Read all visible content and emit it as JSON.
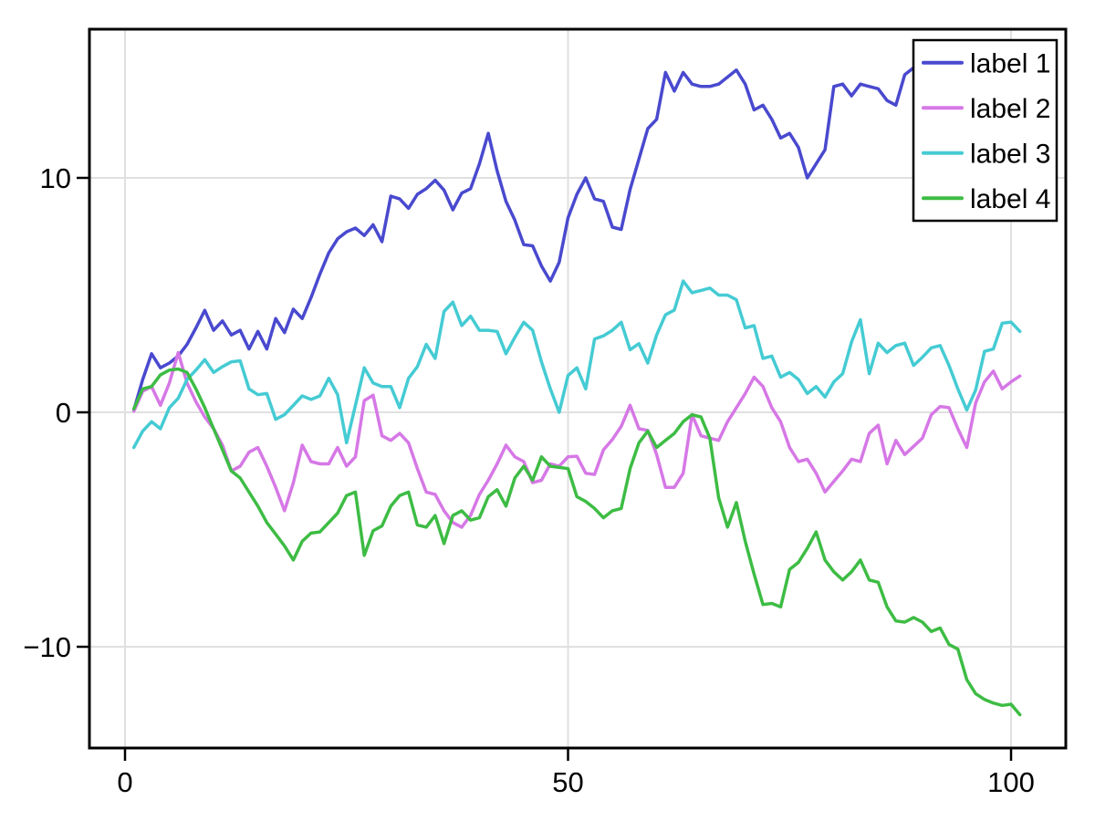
{
  "figure": {
    "background": "#ffffff",
    "text_color": "#000000",
    "grid_color": "#e0e0e0",
    "spine_color": "#000000"
  },
  "axes": {
    "x_tick_labels": [
      "0",
      "50",
      "100"
    ],
    "x_tick_values": [
      0,
      50,
      100
    ],
    "y_tick_labels": [
      "10",
      "0",
      "−10"
    ],
    "y_tick_values": [
      10,
      0,
      -10
    ]
  },
  "legend": {
    "position": "top-right",
    "entries": [
      {
        "label": "label 1",
        "color": "#4949cf"
      },
      {
        "label": "label 2",
        "color": "#d678e6"
      },
      {
        "label": "label 3",
        "color": "#45cbd3"
      },
      {
        "label": "label 4",
        "color": "#3dbc44"
      }
    ]
  },
  "chart_data": {
    "type": "line",
    "title": "",
    "xlabel": "",
    "ylabel": "",
    "grid": true,
    "legend_position": "top-right",
    "x_start": 1,
    "x_step": 1,
    "x_range": [
      1,
      101
    ],
    "xlim": [
      -4.0,
      106.2
    ],
    "ylim": [
      -14.3,
      16.3
    ],
    "series": [
      {
        "name": "label 1",
        "color": "#4949cf",
        "values": [
          0.1,
          1.4,
          2.5,
          1.9,
          2.1,
          2.4,
          2.9,
          3.6,
          4.35,
          3.5,
          3.9,
          3.3,
          3.5,
          2.7,
          3.45,
          2.7,
          4.0,
          3.4,
          4.4,
          4.0,
          4.9,
          5.9,
          6.8,
          7.4,
          7.7,
          7.86,
          7.54,
          8.0,
          7.28,
          9.22,
          9.1,
          8.7,
          9.3,
          9.54,
          9.9,
          9.48,
          8.64,
          9.35,
          9.54,
          10.6,
          11.9,
          10.3,
          9.0,
          8.2,
          7.15,
          7.1,
          6.24,
          5.6,
          6.4,
          8.3,
          9.3,
          10.0,
          9.1,
          9.0,
          7.9,
          7.8,
          9.5,
          10.8,
          12.1,
          12.5,
          14.5,
          13.7,
          14.5,
          14.0,
          13.9,
          13.9,
          14.0,
          14.3,
          14.6,
          14.0,
          12.9,
          13.1,
          12.5,
          11.7,
          11.9,
          11.3,
          10.0,
          10.6,
          11.2,
          13.9,
          14.0,
          13.5,
          14.0,
          13.9,
          13.8,
          13.3,
          13.1,
          14.4,
          14.7,
          14.8,
          14.7,
          14.9,
          15.1,
          15.0,
          15.2,
          15.1,
          15.3,
          15.2,
          15.4,
          15.3,
          15.5
        ]
      },
      {
        "name": "label 2",
        "color": "#d678e6",
        "values": [
          0.05,
          0.9,
          1.1,
          0.3,
          1.25,
          2.55,
          1.25,
          0.45,
          -0.2,
          -0.7,
          -1.4,
          -2.5,
          -2.3,
          -1.7,
          -1.5,
          -2.3,
          -3.2,
          -4.2,
          -3.0,
          -1.4,
          -2.1,
          -2.2,
          -2.2,
          -1.5,
          -2.3,
          -1.9,
          0.5,
          0.73,
          -1.0,
          -1.2,
          -0.9,
          -1.3,
          -2.4,
          -3.4,
          -3.5,
          -4.2,
          -4.7,
          -4.9,
          -4.4,
          -3.5,
          -2.9,
          -2.2,
          -1.4,
          -1.9,
          -2.1,
          -3.0,
          -2.9,
          -2.2,
          -2.3,
          -1.9,
          -1.87,
          -2.6,
          -2.65,
          -1.6,
          -1.16,
          -0.6,
          0.3,
          -0.7,
          -0.77,
          -1.8,
          -3.2,
          -3.2,
          -2.6,
          -0.1,
          -1.0,
          -1.1,
          -1.2,
          -0.4,
          0.2,
          0.8,
          1.5,
          1.1,
          0.2,
          -0.4,
          -1.5,
          -2.1,
          -2.0,
          -2.6,
          -3.4,
          -2.95,
          -2.5,
          -2.0,
          -2.1,
          -0.9,
          -0.55,
          -2.2,
          -1.2,
          -1.8,
          -1.45,
          -1.1,
          -0.1,
          0.25,
          0.2,
          -0.7,
          -1.5,
          0.4,
          1.3,
          1.76,
          1.0,
          1.3,
          1.55
        ]
      },
      {
        "name": "label 3",
        "color": "#45cbd3",
        "values": [
          -1.5,
          -0.8,
          -0.4,
          -0.7,
          0.2,
          0.6,
          1.4,
          1.8,
          2.25,
          1.7,
          1.95,
          2.15,
          2.2,
          1.0,
          0.75,
          0.8,
          -0.3,
          -0.1,
          0.3,
          0.7,
          0.55,
          0.7,
          1.45,
          0.75,
          -1.3,
          0.3,
          1.9,
          1.25,
          1.1,
          1.1,
          0.2,
          1.45,
          1.95,
          2.9,
          2.3,
          4.3,
          4.7,
          3.7,
          4.1,
          3.5,
          3.5,
          3.45,
          2.5,
          3.2,
          3.84,
          3.5,
          2.15,
          1.0,
          0.0,
          1.57,
          1.9,
          1.0,
          3.13,
          3.26,
          3.5,
          3.84,
          2.67,
          2.93,
          2.1,
          3.3,
          4.16,
          4.36,
          5.6,
          5.1,
          5.2,
          5.3,
          5.0,
          5.0,
          4.8,
          3.6,
          3.7,
          2.3,
          2.4,
          1.5,
          1.7,
          1.4,
          0.8,
          1.1,
          0.65,
          1.3,
          1.65,
          3.0,
          3.95,
          1.65,
          2.95,
          2.55,
          2.85,
          2.95,
          2.0,
          2.35,
          2.75,
          2.85,
          2.0,
          1.0,
          0.1,
          0.95,
          2.6,
          2.7,
          3.8,
          3.85,
          3.45
        ]
      },
      {
        "name": "label 4",
        "color": "#3dbc44",
        "values": [
          0.15,
          1.0,
          1.1,
          1.6,
          1.8,
          1.85,
          1.7,
          1.0,
          0.2,
          -0.7,
          -1.6,
          -2.5,
          -2.8,
          -3.4,
          -4.0,
          -4.7,
          -5.2,
          -5.7,
          -6.3,
          -5.5,
          -5.15,
          -5.1,
          -4.7,
          -4.3,
          -3.55,
          -3.4,
          -6.1,
          -5.05,
          -4.85,
          -4.0,
          -3.55,
          -3.4,
          -4.8,
          -4.9,
          -4.4,
          -5.6,
          -4.4,
          -4.2,
          -4.6,
          -4.5,
          -3.6,
          -3.3,
          -4.0,
          -2.8,
          -2.3,
          -2.9,
          -1.9,
          -2.3,
          -2.35,
          -2.4,
          -3.6,
          -3.8,
          -4.1,
          -4.5,
          -4.2,
          -4.1,
          -2.4,
          -1.3,
          -0.8,
          -1.5,
          -1.2,
          -0.9,
          -0.4,
          -0.1,
          -0.2,
          -1.1,
          -3.65,
          -4.9,
          -3.85,
          -5.5,
          -6.9,
          -8.2,
          -8.15,
          -8.3,
          -6.7,
          -6.4,
          -5.8,
          -5.1,
          -6.3,
          -6.8,
          -7.15,
          -6.8,
          -6.3,
          -7.15,
          -7.25,
          -8.3,
          -8.9,
          -8.95,
          -8.75,
          -8.95,
          -9.35,
          -9.2,
          -9.9,
          -10.1,
          -11.4,
          -12.0,
          -12.25,
          -12.4,
          -12.5,
          -12.45,
          -12.9
        ]
      }
    ]
  }
}
